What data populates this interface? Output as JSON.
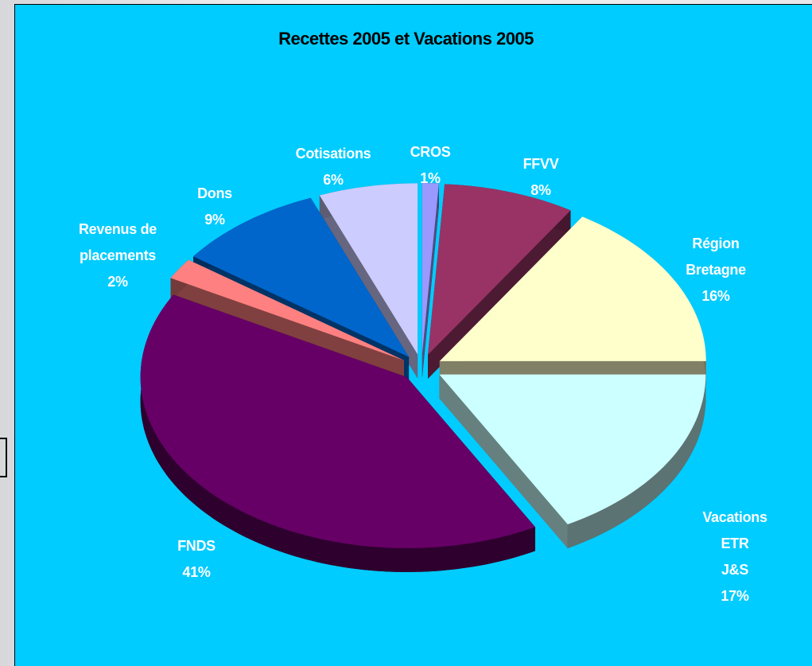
{
  "chart_data": {
    "type": "pie",
    "title": "Recettes 2005 et Vacations 2005",
    "categories": [
      "CROS",
      "FFVV",
      "Région\nBretagne",
      "Vacations ETR\nJ&S",
      "FNDS",
      "Revenus de\nplacements",
      "Dons",
      "Cotisations"
    ],
    "values": [
      1,
      8,
      16,
      17,
      41,
      2,
      9,
      6
    ],
    "value_labels": [
      "1%",
      "8%",
      "16%",
      "17%",
      "41%",
      "2%",
      "9%",
      "6%"
    ],
    "colors": [
      "#9999ff",
      "#993366",
      "#ffffcc",
      "#ccffff",
      "#660066",
      "#ff8080",
      "#0066cc",
      "#ccccff"
    ]
  }
}
